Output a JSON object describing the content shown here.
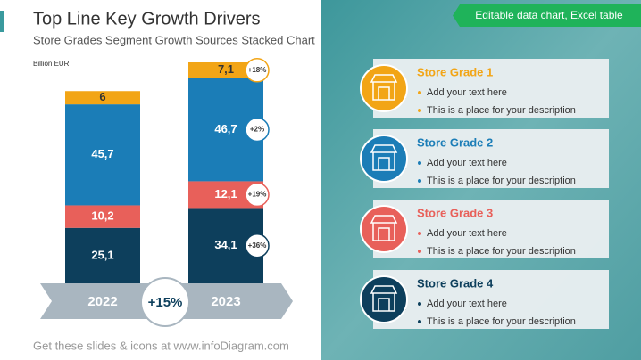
{
  "chart_data": {
    "type": "stacked-bar",
    "title": "Top Line Key Growth Drivers",
    "subtitle": "Store Grades Segment Growth Sources Stacked Chart",
    "y_label": "Billion EUR",
    "categories": [
      "2022",
      "2023"
    ],
    "series": [
      {
        "name": "Store Grade 4",
        "color": "#0d3f5c",
        "values": [
          25.1,
          34.1
        ],
        "value_labels": [
          "25,1",
          "34,1"
        ]
      },
      {
        "name": "Store Grade 3",
        "color": "#e8605a",
        "values": [
          10.2,
          12.1
        ],
        "value_labels": [
          "10,2",
          "12,1"
        ]
      },
      {
        "name": "Store Grade 2",
        "color": "#1b7db7",
        "values": [
          45.7,
          46.7
        ],
        "value_labels": [
          "45,7",
          "46,7"
        ]
      },
      {
        "name": "Store Grade 1",
        "color": "#f2a516",
        "values": [
          6,
          7.1
        ],
        "value_labels": [
          "6",
          "7,1"
        ]
      }
    ],
    "growth_labels": [
      "+36%",
      "+19%",
      "+2%",
      "+18%"
    ],
    "total_growth": "+15%"
  },
  "banner": "Editable data chart, Excel table",
  "card_lines": [
    "Add your text here",
    "This is a place for your description"
  ],
  "footer": "Get these slides & icons at www.infoDiagram.com"
}
